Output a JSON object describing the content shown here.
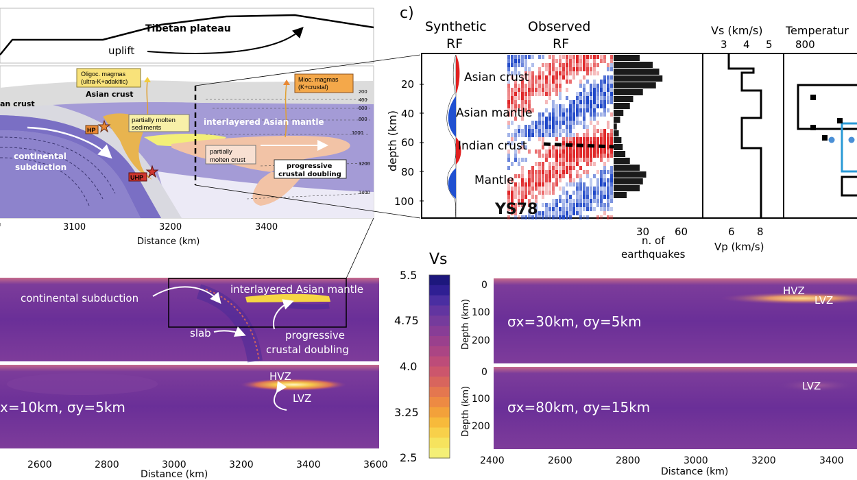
{
  "top_strip": {
    "title": "Tibetan plateau",
    "uplift": "uplift"
  },
  "cross_section": {
    "magma_oligo": [
      "Oligoc. magmas",
      "(ultra-K+adakitic)"
    ],
    "magma_mioc": [
      "Mioc. magmas",
      "(K+crustal)"
    ],
    "asian_crust": "Asian crust",
    "indian_crust_cut": "an crust",
    "partial_sediments": [
      "partially molten",
      "sediments"
    ],
    "interlayered": "interlayered Asian mantle",
    "continental_subduction": [
      "continental",
      "subduction"
    ],
    "hp": "HP",
    "uhp": "UHP",
    "partial_crust": [
      "partially",
      "molten crust"
    ],
    "doubling": [
      "progressive",
      "crustal doubling"
    ],
    "isotherms": [
      "200",
      "400",
      "600",
      "800",
      "1000",
      "1200",
      "1400"
    ],
    "x_ticks": [
      "3100",
      "3200",
      "3400"
    ],
    "x_label": "Distance (km)"
  },
  "panel_c": {
    "letter": "c)",
    "synthetic": [
      "Synthetic",
      "RF"
    ],
    "observed": [
      "Observed",
      "RF"
    ],
    "depth_label": "depth (km)",
    "depth_ticks": [
      "20",
      "40",
      "60",
      "80",
      "100"
    ],
    "layer_labels": [
      "Asian crust",
      "Asian mantle",
      "Indian crust",
      "Mantle"
    ],
    "station": "YS78",
    "eq_ticks": [
      "30",
      "60"
    ],
    "eq_label": [
      "n. of",
      "earthquakes"
    ],
    "vs_label": "Vs (km/s)",
    "vs_ticks": [
      "3",
      "4",
      "5"
    ],
    "vp_ticks": [
      "6",
      "8"
    ],
    "vp_label": "Vp (km/s)",
    "temp_label": "Temperatur",
    "temp_tick": "800"
  },
  "models_left": {
    "annotations": {
      "continental_subduction": "continental subduction",
      "interlayered": "interlayered Asian mantle",
      "slab": "slab",
      "doubling": [
        "progressive",
        "crustal doubling"
      ],
      "hvz": "HVZ",
      "lvz": "LVZ"
    },
    "sigma_label": "x=10km, σy=5km",
    "x_ticks": [
      "2600",
      "2800",
      "3000",
      "3200",
      "3400",
      "3600"
    ],
    "x_label": "Distance (km)"
  },
  "colorbar": {
    "title": "Vs",
    "ticks": [
      "5.5",
      "4.75",
      "4.0",
      "3.25",
      "2.5"
    ],
    "colors": [
      "#1d177d",
      "#2f1f93",
      "#4a2ea1",
      "#6235a0",
      "#753b9c",
      "#883d96",
      "#9a408d",
      "#ab4584",
      "#bd4c79",
      "#cc566c",
      "#d8655d",
      "#e4774f",
      "#ed8a43",
      "#f3a13a",
      "#f7ba3b",
      "#f8d04a",
      "#f6e35e",
      "#f4ef76"
    ]
  },
  "models_right": {
    "top": {
      "sigma_label": "σx=30km, σy=5km",
      "hvz": "HVZ",
      "lvz": "LVZ"
    },
    "bottom": {
      "sigma_label": "σx=80km, σy=15km",
      "lvz": "LVZ"
    },
    "depth_label": "Depth (km)",
    "depth_ticks": [
      "0",
      "100",
      "200"
    ],
    "x_ticks": [
      "2400",
      "2600",
      "2800",
      "3000",
      "3200",
      "3400"
    ],
    "x_label": "Distance (km)"
  }
}
